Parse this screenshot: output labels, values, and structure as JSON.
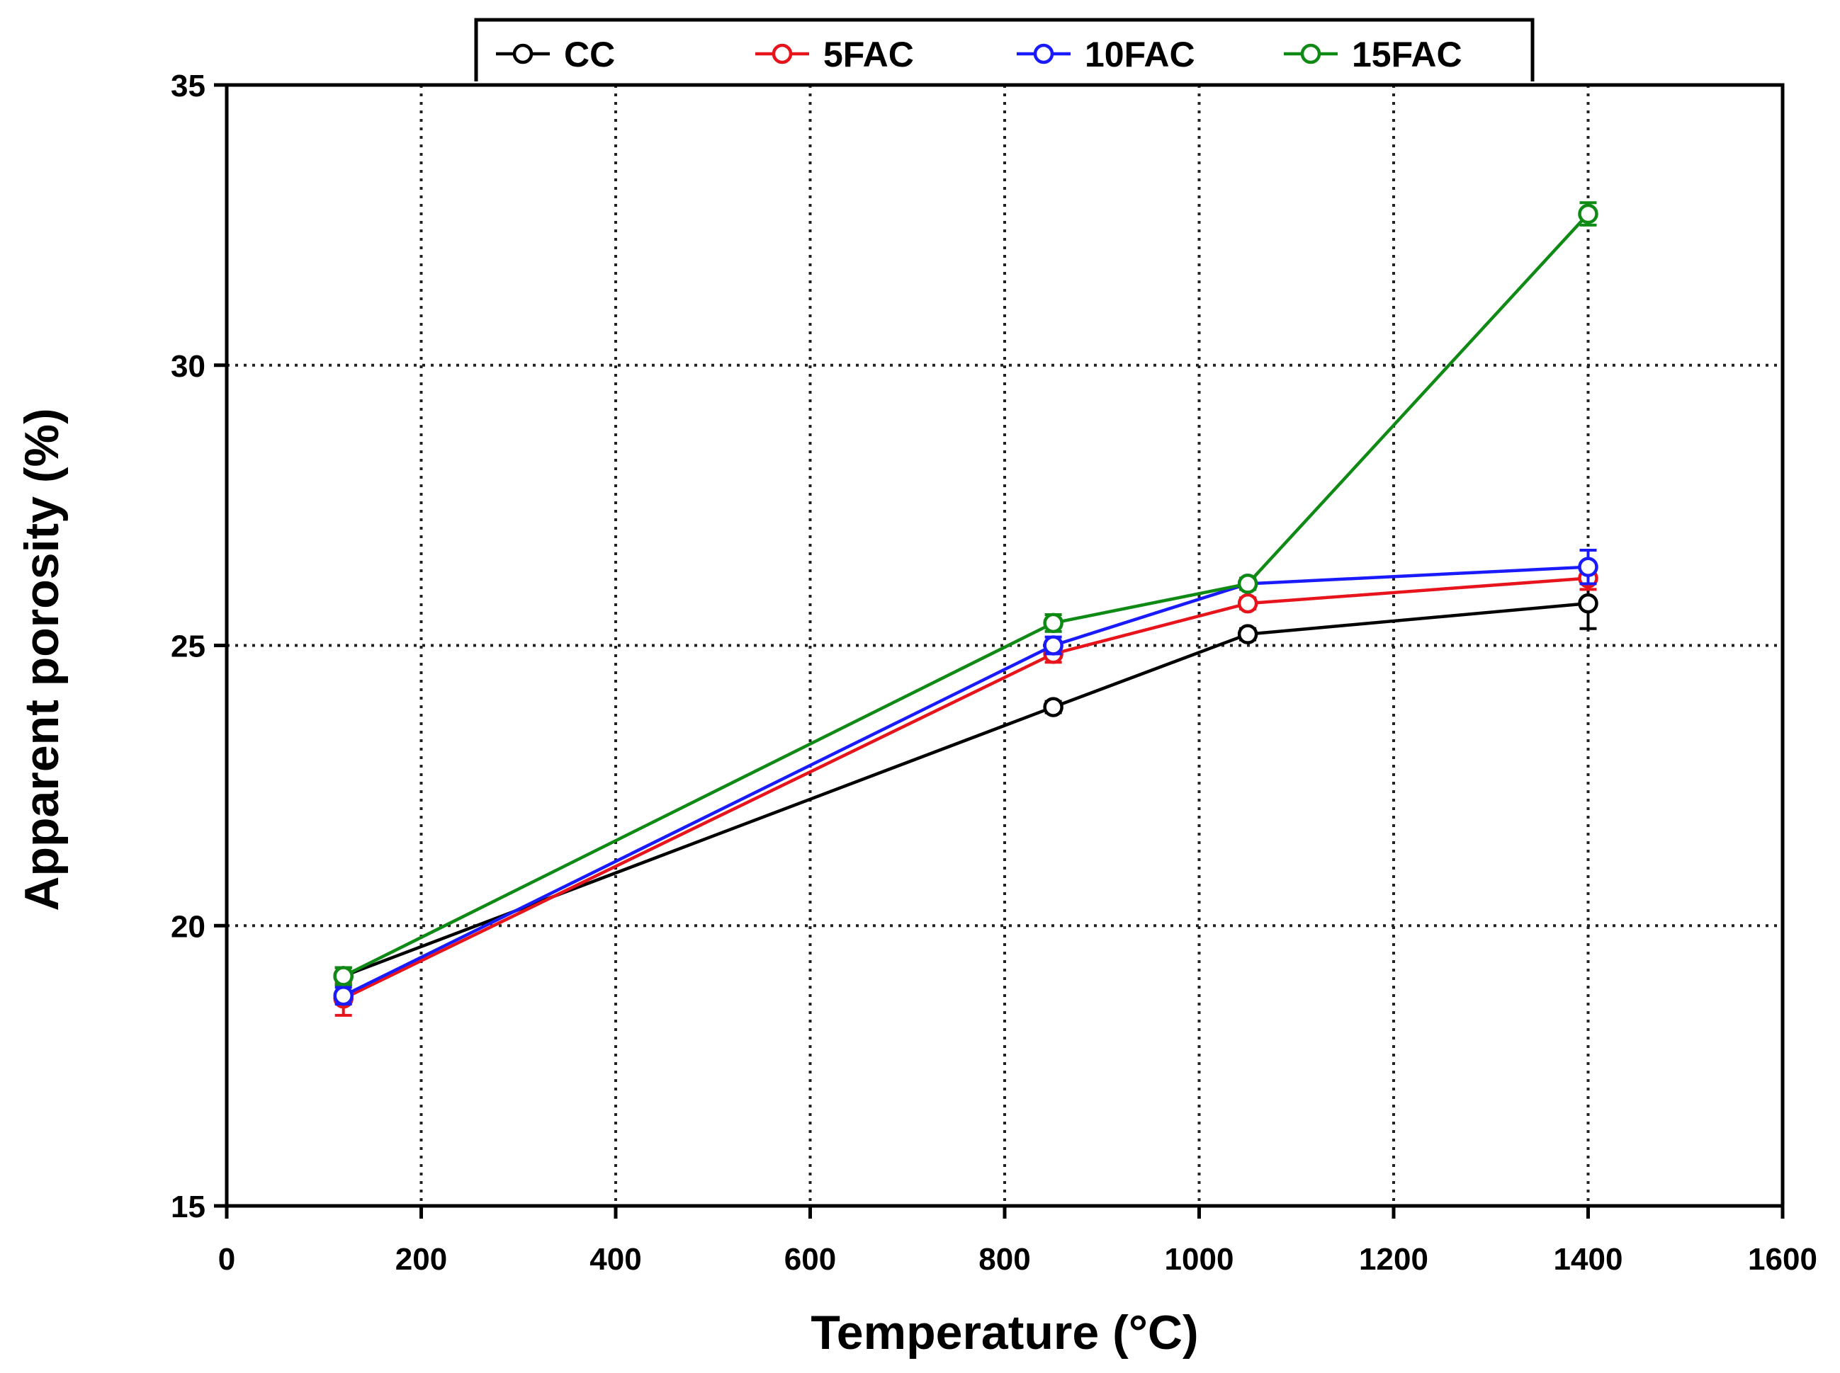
{
  "chart_data": {
    "type": "line",
    "title": "",
    "xlabel": "Temperature (°C)",
    "ylabel": "Apparent porosity (%)",
    "xlim": [
      0,
      1600
    ],
    "ylim": [
      15,
      35
    ],
    "x_ticks": [
      0,
      200,
      400,
      600,
      800,
      1000,
      1200,
      1400,
      1600
    ],
    "y_ticks": [
      15,
      20,
      25,
      30,
      35
    ],
    "grid": true,
    "legend_position": "top",
    "x": [
      120,
      850,
      1050,
      1400
    ],
    "series": [
      {
        "name": "CC",
        "color": "#000000",
        "values": [
          19.1,
          23.9,
          25.2,
          25.75
        ],
        "errors": [
          0.15,
          0.1,
          0.1,
          0.45
        ]
      },
      {
        "name": "5FAC",
        "color": "#e8141c",
        "values": [
          18.7,
          24.85,
          25.75,
          26.2
        ],
        "errors": [
          0.3,
          0.15,
          0.1,
          0.2
        ]
      },
      {
        "name": "10FAC",
        "color": "#1a1aff",
        "values": [
          18.75,
          25.0,
          26.1,
          26.4
        ],
        "errors": [
          0.15,
          0.15,
          0.1,
          0.3
        ]
      },
      {
        "name": "15FAC",
        "color": "#0f8a14",
        "values": [
          19.1,
          25.4,
          26.1,
          32.7
        ],
        "errors": [
          0.15,
          0.15,
          0.1,
          0.2
        ]
      }
    ]
  }
}
